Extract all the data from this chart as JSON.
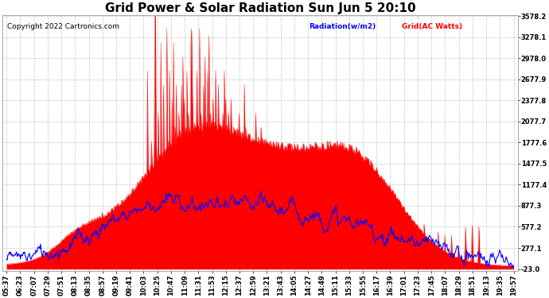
{
  "title": "Grid Power & Solar Radiation Sun Jun 5 20:10",
  "copyright": "Copyright 2022 Cartronics.com",
  "legend_radiation": "Radiation(w/m2)",
  "legend_grid": "Grid(AC Watts)",
  "ymin": -23.0,
  "ymax": 3578.2,
  "yticks": [
    3578.2,
    3278.1,
    2978.0,
    2677.9,
    2377.8,
    2077.7,
    1777.6,
    1477.5,
    1177.4,
    877.3,
    577.2,
    277.1,
    -23.0
  ],
  "xtick_labels": [
    "05:37",
    "06:23",
    "07:07",
    "07:29",
    "07:51",
    "08:13",
    "08:35",
    "08:57",
    "09:19",
    "09:41",
    "10:03",
    "10:25",
    "10:47",
    "11:09",
    "11:31",
    "11:53",
    "12:15",
    "12:37",
    "12:59",
    "13:21",
    "13:43",
    "14:05",
    "14:27",
    "14:49",
    "15:11",
    "15:33",
    "15:55",
    "16:17",
    "16:39",
    "17:01",
    "17:23",
    "17:45",
    "18:07",
    "18:29",
    "18:51",
    "19:13",
    "19:35",
    "19:57"
  ],
  "background_color": "#ffffff",
  "grid_color": "#aaaaaa",
  "red_color": "#ff0000",
  "blue_color": "#0000ff",
  "title_fontsize": 11,
  "copyright_fontsize": 6.5,
  "tick_fontsize": 6.0
}
